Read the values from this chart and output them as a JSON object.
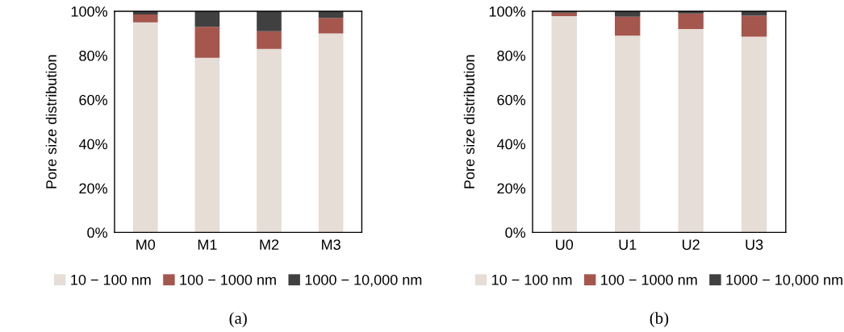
{
  "chart_data": [
    {
      "type": "bar",
      "stacked": true,
      "ylabel": "Pore size distribution",
      "categories": [
        "M0",
        "M1",
        "M2",
        "M3"
      ],
      "series": [
        {
          "name": "10 − 100 nm",
          "color": "#e5ddd6",
          "values": [
            95,
            79,
            83,
            90
          ]
        },
        {
          "name": "100 − 1000 nm",
          "color": "#a5564d",
          "values": [
            3.5,
            14,
            8,
            7
          ]
        },
        {
          "name": "1000 − 10,000 nm",
          "color": "#404040",
          "values": [
            1.5,
            7,
            9,
            3
          ]
        }
      ],
      "ylim": [
        0,
        100
      ],
      "yticks": [
        {
          "value": 0,
          "label": "0%"
        },
        {
          "value": 20,
          "label": "20%"
        },
        {
          "value": 40,
          "label": "40%"
        },
        {
          "value": 60,
          "label": "60%"
        },
        {
          "value": 80,
          "label": "80%"
        },
        {
          "value": 100,
          "label": "100%"
        }
      ],
      "grid": false,
      "legend": "bottom",
      "annotations": [
        "(a)"
      ]
    },
    {
      "type": "bar",
      "stacked": true,
      "ylabel": "Pore size distribution",
      "categories": [
        "U0",
        "U1",
        "U2",
        "U3"
      ],
      "series": [
        {
          "name": "10 − 100 nm",
          "color": "#e5ddd6",
          "values": [
            97.8,
            89,
            92,
            88.5
          ]
        },
        {
          "name": "100 − 1000 nm",
          "color": "#a5564d",
          "values": [
            1.6,
            8.5,
            7,
            9.5
          ]
        },
        {
          "name": "1000 − 10,000 nm",
          "color": "#404040",
          "values": [
            0.6,
            2.5,
            1,
            2
          ]
        }
      ],
      "ylim": [
        0,
        100
      ],
      "yticks": [
        {
          "value": 0,
          "label": "0%"
        },
        {
          "value": 20,
          "label": "20%"
        },
        {
          "value": 40,
          "label": "40%"
        },
        {
          "value": 60,
          "label": "60%"
        },
        {
          "value": 80,
          "label": "80%"
        },
        {
          "value": 100,
          "label": "100%"
        }
      ],
      "grid": false,
      "legend": "bottom",
      "annotations": [
        "(b)"
      ]
    }
  ]
}
